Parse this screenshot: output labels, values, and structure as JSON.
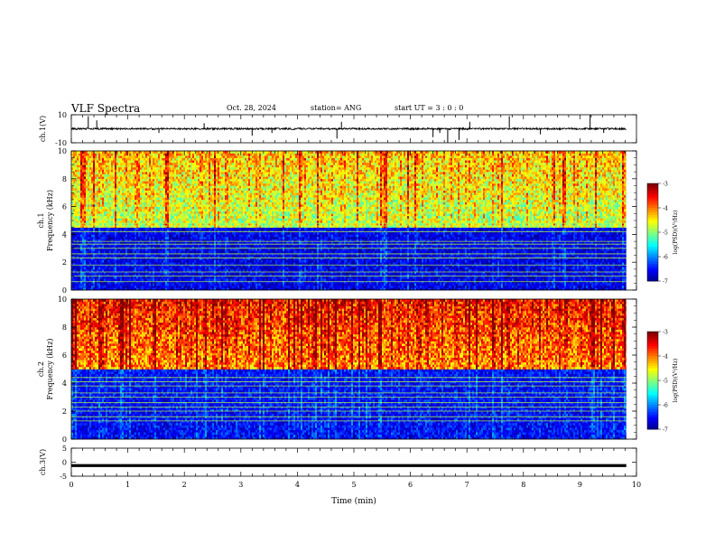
{
  "header": {
    "title": "VLF Spectra",
    "date": "Oct. 28, 2024",
    "station": "station= ANG",
    "start": "start UT = 3 : 0 : 0"
  },
  "chart_data": [
    {
      "type": "line",
      "title": "",
      "ylabel": "ch.1(V)",
      "ylim": [
        -10,
        10
      ],
      "yticks": [
        "10",
        "-10"
      ],
      "xlim": [
        0,
        10
      ],
      "series": [
        {
          "color": "#000000",
          "baseline": 0,
          "spikes": [
            {
              "x": 0.3,
              "y": 9
            },
            {
              "x": 0.45,
              "y": 6
            },
            {
              "x": 1.55,
              "y": -3
            },
            {
              "x": 2.35,
              "y": 4
            },
            {
              "x": 3.2,
              "y": -5
            },
            {
              "x": 3.55,
              "y": -3
            },
            {
              "x": 4.7,
              "y": -7
            },
            {
              "x": 4.78,
              "y": 5
            },
            {
              "x": 6.4,
              "y": -6
            },
            {
              "x": 6.52,
              "y": -3
            },
            {
              "x": 6.66,
              "y": -10
            },
            {
              "x": 6.86,
              "y": -8
            },
            {
              "x": 7.05,
              "y": 5
            },
            {
              "x": 7.75,
              "y": 9
            },
            {
              "x": 8.3,
              "y": -4
            },
            {
              "x": 9.18,
              "y": 10
            },
            {
              "x": 9.42,
              "y": -3
            }
          ]
        }
      ]
    },
    {
      "type": "heatmap",
      "title": "",
      "ylabel": "ch.1\nFrequency (kHz)",
      "ylim": [
        0,
        10
      ],
      "yticks": [
        "0",
        "2",
        "4",
        "6",
        "8",
        "10"
      ],
      "xlim": [
        0,
        10
      ],
      "data_end_min": 9.82,
      "colorbar": {
        "label": "log(PSD)(V²/Hz)",
        "range": [
          -7,
          -3
        ],
        "ticks": [
          "-3",
          "-4",
          "-5",
          "-6",
          "-7"
        ]
      },
      "spectrum": {
        "high_band_kHz": [
          4.5,
          10
        ],
        "low_band_kHz": [
          0,
          4.5
        ],
        "high_band_level": -4.8,
        "low_band_level": -6.6,
        "narrowband_lines_kHz": [
          0.6,
          1.0,
          1.3,
          1.8,
          2.3,
          2.6,
          3.0,
          3.3,
          3.5,
          4.2,
          4.6,
          4.8
        ]
      }
    },
    {
      "type": "heatmap",
      "title": "",
      "ylabel": "ch.2\nFrequency (kHz)",
      "ylim": [
        0,
        10
      ],
      "yticks": [
        "0",
        "2",
        "4",
        "6",
        "8",
        "10"
      ],
      "xlim": [
        0,
        10
      ],
      "data_end_min": 9.82,
      "colorbar": {
        "label": "log(PSD)(V²/Hz)",
        "range": [
          -7,
          -3
        ],
        "ticks": [
          "-3",
          "-4",
          "-5",
          "-6",
          "-7"
        ]
      },
      "spectrum": {
        "high_band_kHz": [
          5,
          10
        ],
        "low_band_kHz": [
          0,
          5
        ],
        "high_band_level": -4.1,
        "low_band_level": -6.5,
        "narrowband_lines_kHz": [
          1.3,
          1.6,
          2.0,
          2.3,
          2.6,
          3.0,
          3.3,
          3.8,
          4.1,
          4.4
        ]
      }
    },
    {
      "type": "line",
      "title": "",
      "ylabel": "ch.3(V)",
      "ylim": [
        -5,
        5
      ],
      "yticks": [
        "5",
        "0",
        "-5"
      ],
      "xlim": [
        0,
        10
      ],
      "xlabel": "Time (min)",
      "xticks": [
        "0",
        "1",
        "2",
        "3",
        "4",
        "5",
        "6",
        "7",
        "8",
        "9",
        "10"
      ],
      "series": [
        {
          "color": "#000000",
          "constant": -1.2
        }
      ]
    }
  ]
}
